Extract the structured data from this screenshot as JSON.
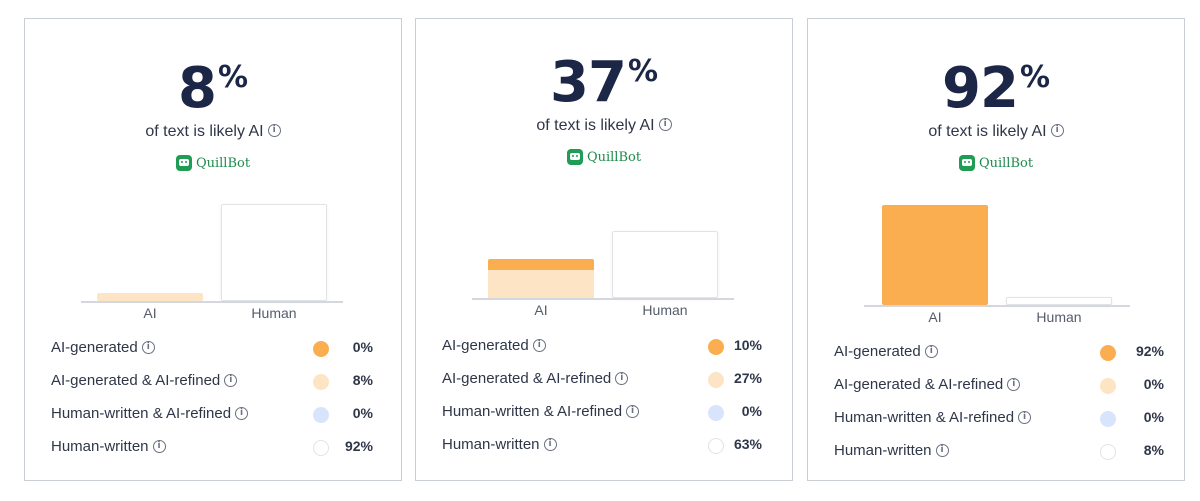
{
  "brand": {
    "name": "QuillBot"
  },
  "legend_labels": {
    "ai_generated": "AI-generated",
    "ai_generated_ai_refined": "AI-generated & AI-refined",
    "human_written_ai_refined": "Human-written & AI-refined",
    "human_written": "Human-written"
  },
  "colors": {
    "ai_generated": "#fbae50",
    "ai_generated_ai_refined": "#fde4c4",
    "human_written_ai_refined": "#d7e4fb",
    "human_written": "#ffffff",
    "brand": "#1f9d55"
  },
  "cards": [
    {
      "percent": "8",
      "percent_sign": "%",
      "caption": "of text is likely AI",
      "x_labels": [
        "AI",
        "Human"
      ],
      "values": {
        "ai_generated": 0,
        "ai_generated_ai_refined": 8,
        "human_written_ai_refined": 0,
        "human_written": 92
      },
      "rows": [
        {
          "label": "AI-generated",
          "value": "0%"
        },
        {
          "label": "AI-generated & AI-refined",
          "value": "8%"
        },
        {
          "label": "Human-written & AI-refined",
          "value": "0%"
        },
        {
          "label": "Human-written",
          "value": "92%"
        }
      ]
    },
    {
      "percent": "37",
      "percent_sign": "%",
      "caption": "of text is likely AI",
      "x_labels": [
        "AI",
        "Human"
      ],
      "values": {
        "ai_generated": 10,
        "ai_generated_ai_refined": 27,
        "human_written_ai_refined": 0,
        "human_written": 63
      },
      "rows": [
        {
          "label": "AI-generated",
          "value": "10%"
        },
        {
          "label": "AI-generated & AI-refined",
          "value": "27%"
        },
        {
          "label": "Human-written & AI-refined",
          "value": "0%"
        },
        {
          "label": "Human-written",
          "value": "63%"
        }
      ]
    },
    {
      "percent": "92",
      "percent_sign": "%",
      "caption": "of text is likely AI",
      "x_labels": [
        "AI",
        "Human"
      ],
      "values": {
        "ai_generated": 92,
        "ai_generated_ai_refined": 0,
        "human_written_ai_refined": 0,
        "human_written": 8
      },
      "rows": [
        {
          "label": "AI-generated",
          "value": "92%"
        },
        {
          "label": "AI-generated & AI-refined",
          "value": "0%"
        },
        {
          "label": "Human-written & AI-refined",
          "value": "0%"
        },
        {
          "label": "Human-written",
          "value": "8%"
        }
      ]
    }
  ]
}
